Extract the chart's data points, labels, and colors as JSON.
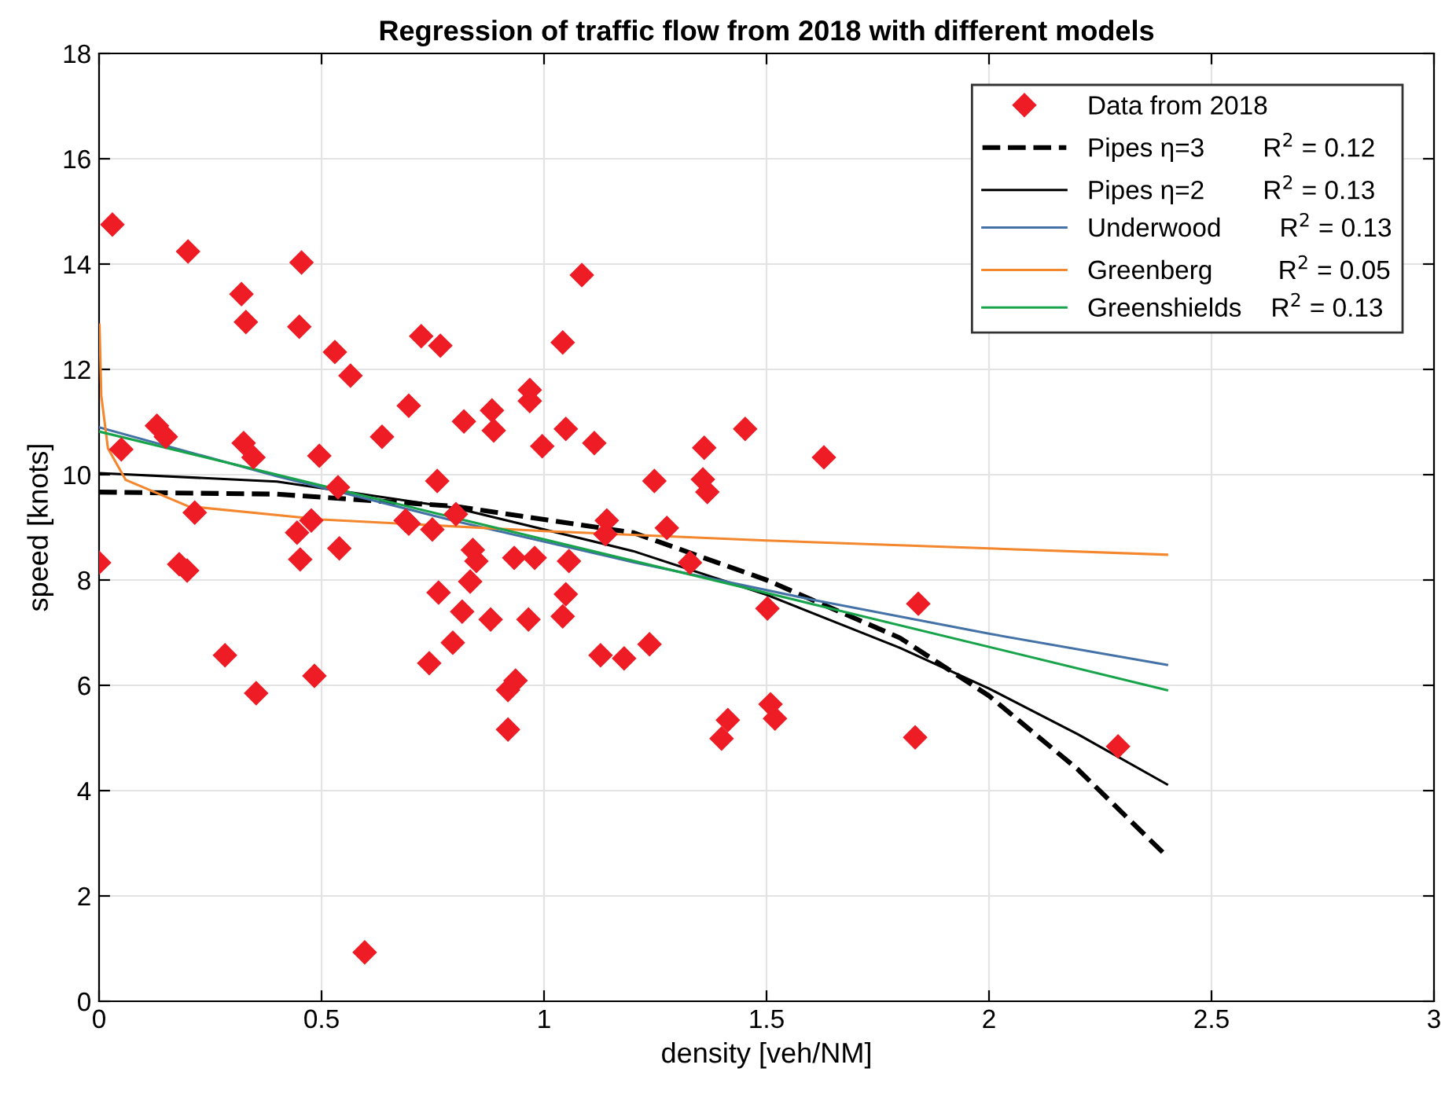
{
  "chart_data": {
    "type": "scatter",
    "title": "Regression of traffic flow from 2018 with different models",
    "xlabel": "density [veh/NM]",
    "ylabel": "speed [knots]",
    "xlim": [
      0,
      3
    ],
    "ylim": [
      0,
      18
    ],
    "xticks": [
      0,
      0.5,
      1,
      1.5,
      2,
      2.5,
      3
    ],
    "yticks": [
      0,
      2,
      4,
      6,
      8,
      10,
      12,
      14,
      16,
      18
    ],
    "grid": true,
    "legend": "top right",
    "series": [
      {
        "name": "Data from 2018",
        "marker": "diamond",
        "color": "#ee1c25",
        "x": [
          0,
          0.03,
          0.05,
          0.2,
          0.13,
          0.15,
          0.215,
          0.18,
          0.198,
          0.32,
          0.33,
          0.325,
          0.347,
          0.455,
          0.45,
          0.53,
          0.565,
          0.495,
          0.537,
          0.445,
          0.477,
          0.452,
          0.54,
          0.636,
          0.696,
          0.724,
          0.767,
          0.82,
          0.883,
          0.887,
          0.968,
          0.968,
          0.996,
          0.76,
          0.689,
          0.696,
          0.749,
          0.802,
          0.84,
          0.848,
          0.933,
          0.979,
          0.763,
          0.834,
          0.816,
          0.283,
          0.353,
          0.484,
          0.597,
          0.742,
          0.795,
          0.88,
          0.965,
          0.919,
          0.936,
          0.919,
          1.085,
          1.042,
          1.049,
          1.113,
          1.36,
          1.452,
          1.629,
          1.248,
          1.357,
          1.367,
          1.141,
          1.138,
          1.276,
          1.328,
          1.056,
          1.049,
          1.042,
          1.502,
          1.841,
          1.127,
          1.18,
          1.237,
          1.509,
          1.413,
          1.399,
          1.519,
          1.834,
          2.29
        ],
        "values": [
          8.33,
          14.75,
          10.48,
          14.24,
          10.93,
          10.72,
          9.28,
          8.3,
          8.18,
          13.43,
          12.9,
          10.6,
          10.33,
          14.03,
          12.81,
          12.33,
          11.88,
          10.36,
          9.76,
          8.9,
          9.13,
          8.39,
          8.6,
          10.72,
          11.31,
          12.63,
          12.45,
          11.01,
          11.22,
          10.84,
          11.61,
          11.4,
          10.54,
          9.88,
          9.13,
          9.07,
          8.96,
          9.25,
          8.57,
          8.36,
          8.42,
          8.42,
          7.76,
          7.97,
          7.4,
          6.57,
          5.85,
          6.18,
          0.93,
          6.42,
          6.81,
          7.25,
          7.25,
          5.91,
          6.09,
          5.16,
          13.79,
          12.51,
          10.87,
          10.6,
          10.51,
          10.87,
          10.33,
          9.88,
          9.91,
          9.67,
          9.13,
          8.87,
          8.99,
          8.33,
          8.36,
          7.73,
          7.31,
          7.46,
          7.55,
          6.57,
          6.51,
          6.78,
          5.64,
          5.34,
          4.99,
          5.37,
          5.01,
          4.84
        ]
      },
      {
        "name": "Pipes η=3        R$^{2}$ = 0.12",
        "type": "line",
        "line_style": "dashed",
        "color": "#000000",
        "x": [
          0,
          0.4,
          0.8,
          1.2,
          1.5,
          1.8,
          2.0,
          2.2,
          2.4
        ],
        "values": [
          9.67,
          9.63,
          9.4,
          8.9,
          8.0,
          6.9,
          5.8,
          4.4,
          2.75
        ]
      },
      {
        "name": "Pipes η=2        R$^{2}$ = 0.13",
        "type": "line",
        "line_style": "solid",
        "color": "#000000",
        "x": [
          0,
          0.4,
          0.8,
          1.2,
          1.5,
          1.8,
          2.0,
          2.2,
          2.4
        ],
        "values": [
          10.03,
          9.87,
          9.37,
          8.55,
          7.72,
          6.71,
          5.94,
          5.07,
          4.12
        ]
      },
      {
        "name": "Underwood        R$^{2}$ = 0.13",
        "type": "line",
        "line_style": "solid",
        "color": "#4472a6",
        "x": [
          0,
          0.4,
          0.8,
          1.2,
          1.6,
          2.0,
          2.4
        ],
        "values": [
          10.9,
          9.97,
          9.12,
          8.34,
          7.63,
          6.98,
          6.39
        ]
      },
      {
        "name": "Greenberg         R$^{2}$ = 0.05",
        "type": "line",
        "line_style": "solid",
        "color": "#f4862e",
        "x": [
          0.001,
          0.005,
          0.02,
          0.06,
          0.2,
          0.5,
          1.0,
          1.5,
          2.0,
          2.4
        ],
        "values": [
          12.85,
          11.5,
          10.5,
          9.9,
          9.4,
          9.15,
          8.93,
          8.75,
          8.6,
          8.48
        ]
      },
      {
        "name": "Greenshields    R$^{2}$ = 0.13",
        "type": "line",
        "line_style": "solid",
        "color": "#17a34a",
        "x": [
          0,
          0.8,
          1.6,
          2.4
        ],
        "values": [
          10.82,
          9.18,
          7.55,
          5.91
        ]
      }
    ]
  }
}
